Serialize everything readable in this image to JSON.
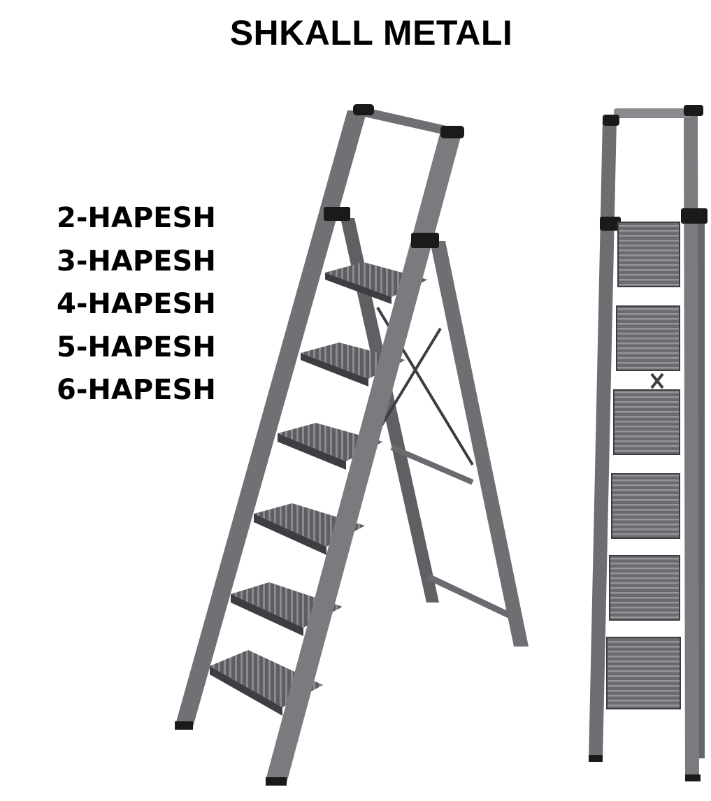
{
  "title": "SHKALL METALI",
  "options": [
    "2-HAPESH",
    "3-HAPESH",
    "4-HAPESH",
    "5-HAPESH",
    "6-HAPESH"
  ],
  "colors": {
    "text": "#000000",
    "frame": "#6e6f72",
    "frame_dark": "#3c3d40",
    "step": "#5d5e61",
    "step_rib": "#8a8b8e",
    "cap": "#1a1a1a",
    "background": "#ffffff"
  }
}
